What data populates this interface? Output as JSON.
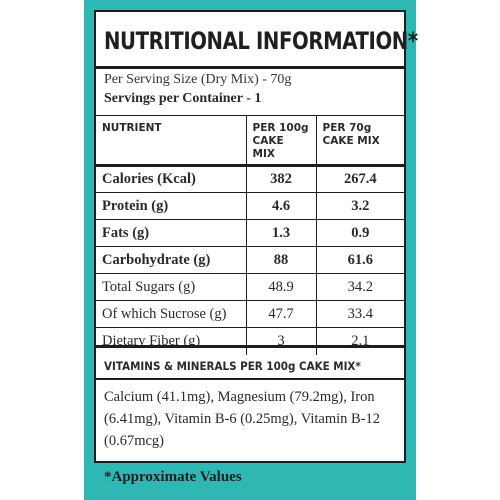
{
  "title": "NUTRITIONAL INFORMATION*",
  "serving_size": "Per Serving Size (Dry Mix) - 70g",
  "servings_per_container": "Servings per Container -  1",
  "table": {
    "headers": {
      "nutrient": "NUTRIENT",
      "col1": "PER 100g CAKE MIX",
      "col2": "PER 70g CAKE MIX"
    },
    "rows": [
      {
        "name": "Calories (Kcal)",
        "per100": "382",
        "per70": "267.4",
        "bold": true
      },
      {
        "name": "Protein (g)",
        "per100": "4.6",
        "per70": "3.2",
        "bold": true
      },
      {
        "name": "Fats (g)",
        "per100": "1.3",
        "per70": "0.9",
        "bold": true
      },
      {
        "name": "Carbohydrate (g)",
        "per100": "88",
        "per70": "61.6",
        "bold": true
      },
      {
        "name": "Total Sugars (g)",
        "per100": "48.9",
        "per70": "34.2",
        "bold": false
      },
      {
        "name": "Of which Sucrose (g)",
        "per100": "47.7",
        "per70": "33.4",
        "bold": false
      },
      {
        "name": "Dietary Fiber (g)",
        "per100": "3",
        "per70": "2.1",
        "bold": false
      }
    ]
  },
  "vitamins": {
    "heading": "VITAMINS & MINERALS PER 100g CAKE MIX*",
    "text": "Calcium (41.1mg), Magnesium  (79.2mg), Iron (6.41mg), Vitamin B-6 (0.25mg), Vitamin B-12 (0.67mcg)"
  },
  "footnote": "*Approximate Values",
  "colors": {
    "panel": "#2fb7b3",
    "border": "#1d1d1d"
  }
}
